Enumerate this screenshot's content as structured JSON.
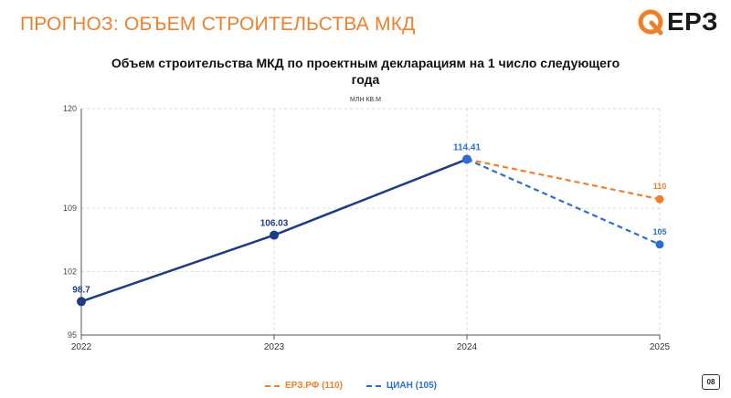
{
  "slide": {
    "title": "ПРОГНОЗ: ОБЪЕМ СТРОИТЕЛЬСТВА МКД",
    "logo_text": "ЕРЗ",
    "page_number": "08"
  },
  "colors": {
    "accent": "#f07f2a",
    "actual": "#1f3b86",
    "cian": "#2a6fd0",
    "erz": "#f07f2a"
  },
  "chart_data": {
    "type": "line",
    "title": "Объем строительства МКД по проектным декларациям на 1 число следующего года",
    "unit_label": "МЛН КВ.М",
    "x": [
      "2022",
      "2023",
      "2024",
      "2025"
    ],
    "ylim": [
      95,
      120
    ],
    "yticks": [
      "95",
      "102",
      "109",
      "120"
    ],
    "grid": true,
    "legend_position": "bottom-center",
    "actual": {
      "x": [
        "2022",
        "2023",
        "2024"
      ],
      "values": [
        98.7,
        106.03,
        114.41
      ],
      "labels": [
        "98.7",
        "106.03",
        "114.41"
      ]
    },
    "series": [
      {
        "name": "ЕРЗ.РФ (110)",
        "x": [
          "2024",
          "2025"
        ],
        "values": [
          114.41,
          110
        ],
        "end_label": "110",
        "style": "dashed"
      },
      {
        "name": "ЦИАН (105)",
        "x": [
          "2024",
          "2025"
        ],
        "values": [
          114.41,
          105
        ],
        "end_label": "105",
        "style": "dashed"
      }
    ]
  }
}
